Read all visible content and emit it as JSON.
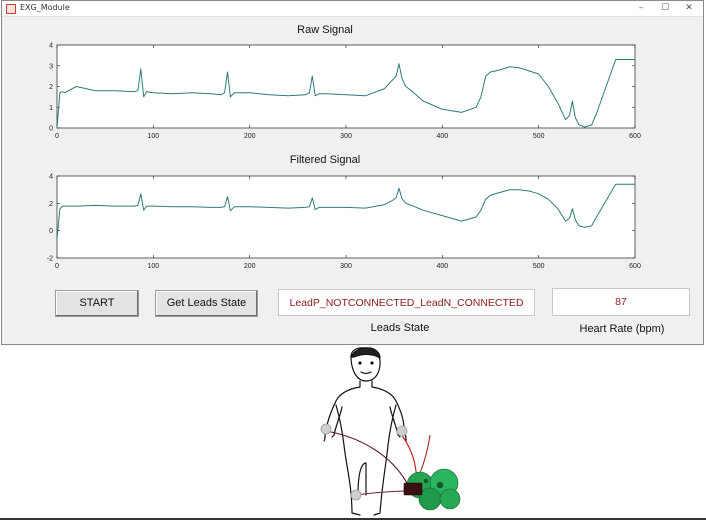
{
  "window": {
    "title": "EXG_Module",
    "controls": {
      "minimize": "–",
      "maximize": "☐",
      "close": "✕"
    }
  },
  "colors": {
    "trace": "#2f7b78",
    "axes_bg": "#ffffff",
    "value_text": "#8c1c1c",
    "window_bg": "#f0f0f0"
  },
  "buttons": {
    "start_label": "START",
    "leads_label": "Get Leads State"
  },
  "fields": {
    "leads_state_value": "LeadP_NOTCONNECTED_LeadN_CONNECTED",
    "leads_state_caption": "Leads State",
    "heart_rate_value": "87",
    "heart_rate_caption": "Heart Rate (bpm)"
  },
  "chart_data": [
    {
      "type": "line",
      "title": "Raw Signal",
      "xlabel": "",
      "ylabel": "",
      "xlim": [
        0,
        600
      ],
      "ylim": [
        0,
        4
      ],
      "xticks": [
        0,
        100,
        200,
        300,
        400,
        500,
        600
      ],
      "yticks": [
        0,
        1,
        2,
        3,
        4
      ],
      "grid": false,
      "x": [
        0,
        3,
        5,
        8,
        20,
        40,
        60,
        80,
        84,
        87,
        90,
        93,
        100,
        120,
        140,
        160,
        170,
        174,
        177,
        180,
        184,
        200,
        220,
        240,
        258,
        262,
        265,
        268,
        272,
        280,
        300,
        320,
        340,
        348,
        352,
        355,
        358,
        362,
        368,
        380,
        400,
        420,
        435,
        440,
        445,
        450,
        460,
        470,
        480,
        490,
        500,
        510,
        520,
        528,
        532,
        535,
        538,
        542,
        548,
        555,
        560,
        570,
        580,
        590,
        600
      ],
      "y": [
        0.0,
        1.7,
        1.75,
        1.7,
        2.0,
        1.8,
        1.8,
        1.75,
        1.8,
        2.85,
        1.5,
        1.75,
        1.7,
        1.65,
        1.7,
        1.65,
        1.6,
        1.7,
        2.7,
        1.5,
        1.7,
        1.7,
        1.6,
        1.55,
        1.6,
        1.7,
        2.5,
        1.55,
        1.65,
        1.65,
        1.6,
        1.55,
        1.9,
        2.3,
        2.5,
        3.1,
        2.4,
        2.0,
        1.8,
        1.3,
        0.9,
        0.75,
        1.0,
        1.5,
        2.5,
        2.7,
        2.8,
        2.95,
        2.9,
        2.75,
        2.6,
        2.0,
        1.2,
        0.4,
        0.6,
        1.3,
        0.5,
        0.15,
        0.05,
        0.15,
        0.7,
        2.0,
        3.3,
        3.3,
        3.3
      ]
    },
    {
      "type": "line",
      "title": "Filtered Signal",
      "xlabel": "",
      "ylabel": "",
      "xlim": [
        0,
        600
      ],
      "ylim": [
        -2,
        4
      ],
      "xticks": [
        0,
        100,
        200,
        300,
        400,
        500,
        600
      ],
      "yticks": [
        -2,
        0,
        2,
        4
      ],
      "grid": false,
      "x": [
        0,
        3,
        6,
        20,
        40,
        60,
        80,
        84,
        87,
        90,
        93,
        100,
        120,
        140,
        160,
        170,
        174,
        177,
        180,
        184,
        200,
        220,
        240,
        258,
        262,
        265,
        268,
        272,
        280,
        300,
        320,
        340,
        348,
        352,
        355,
        358,
        362,
        368,
        380,
        400,
        420,
        435,
        440,
        445,
        450,
        460,
        470,
        480,
        490,
        500,
        510,
        520,
        528,
        532,
        535,
        538,
        542,
        548,
        555,
        560,
        570,
        580,
        590,
        600
      ],
      "y": [
        -0.6,
        1.6,
        1.8,
        1.8,
        1.85,
        1.8,
        1.8,
        1.85,
        2.7,
        1.5,
        1.8,
        1.8,
        1.75,
        1.75,
        1.7,
        1.7,
        1.75,
        2.5,
        1.45,
        1.75,
        1.75,
        1.7,
        1.65,
        1.7,
        1.75,
        2.4,
        1.55,
        1.7,
        1.7,
        1.7,
        1.65,
        1.9,
        2.2,
        2.4,
        3.1,
        2.35,
        2.0,
        1.85,
        1.5,
        1.1,
        0.7,
        1.0,
        1.5,
        2.3,
        2.6,
        2.8,
        3.0,
        3.0,
        2.9,
        2.7,
        2.3,
        1.6,
        0.7,
        0.9,
        1.6,
        0.8,
        0.35,
        0.25,
        0.35,
        1.0,
        2.2,
        3.4,
        3.4,
        3.4
      ]
    }
  ]
}
